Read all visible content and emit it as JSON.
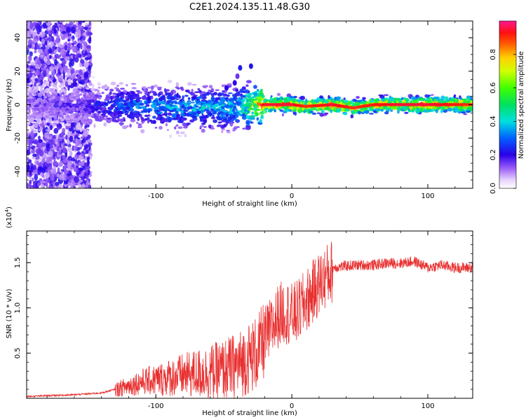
{
  "title": "C2E1.2024.135.11.48.G30",
  "chart_data": [
    {
      "type": "heatmap",
      "xlabel": "Height of straight line (km)",
      "ylabel": "Frequency (Hz)",
      "xlim": [
        -195,
        133
      ],
      "ylim": [
        -50,
        50
      ],
      "xticks": [
        -100,
        0,
        100
      ],
      "xtick_labels": [
        "-100",
        "0",
        "100"
      ],
      "yticks": [
        -40,
        -20,
        0,
        20,
        40
      ],
      "ytick_labels": [
        "-40",
        "-20",
        "0",
        "20",
        "40"
      ],
      "colorbar": {
        "label": "Normalized spectral amplitude",
        "range": [
          0,
          1
        ],
        "ticks": [
          0.0,
          0.2,
          0.4,
          0.6,
          0.8
        ],
        "tick_labels": [
          "0.0",
          "0.2",
          "0.4",
          "0.6",
          "0.8"
        ]
      },
      "ridge": {
        "comment_free": true,
        "x": [
          -195,
          -150,
          -120,
          -80,
          -40,
          -20,
          0,
          10,
          30,
          45,
          60,
          80,
          100,
          120,
          133
        ],
        "freq": [
          0,
          -1,
          -1,
          -2,
          -2,
          0,
          0,
          -1,
          0,
          -2,
          0,
          0,
          0,
          0,
          0
        ],
        "amplitude": [
          0.15,
          0.2,
          0.35,
          0.4,
          0.45,
          0.95,
          0.95,
          0.9,
          0.95,
          0.9,
          0.92,
          0.95,
          0.95,
          0.92,
          0.9
        ]
      }
    },
    {
      "type": "line",
      "xlabel": "Height of straight line (km)",
      "ylabel": "SNR (10 * v/v)",
      "y_multiplier": "(x10",
      "y_multiplier_exp": "4",
      "y_multiplier_close": ")",
      "xlim": [
        -195,
        133
      ],
      "ylim": [
        0,
        1.85
      ],
      "xticks": [
        -100,
        0,
        100
      ],
      "xtick_labels": [
        "-100",
        "0",
        "100"
      ],
      "yticks": [
        0.5,
        1.0,
        1.5
      ],
      "ytick_labels": [
        "0.5",
        "1.0",
        "1.5"
      ],
      "color": "#e83030",
      "series": [
        {
          "x": [
            -195,
            -180,
            -160,
            -140,
            -130,
            -120,
            -110,
            -100,
            -90,
            -80,
            -70,
            -60,
            -50,
            -40,
            -30,
            -25,
            -20,
            -15,
            -10,
            -5,
            0,
            5,
            10,
            15,
            20,
            25,
            30,
            40,
            50,
            60,
            70,
            80,
            90,
            100,
            110,
            120,
            133
          ],
          "values": [
            0.02,
            0.03,
            0.04,
            0.06,
            0.1,
            0.15,
            0.2,
            0.22,
            0.25,
            0.28,
            0.3,
            0.32,
            0.35,
            0.4,
            0.5,
            0.55,
            0.7,
            0.8,
            0.95,
            1.0,
            0.95,
            1.0,
            1.1,
            1.2,
            1.3,
            1.38,
            1.45,
            1.47,
            1.48,
            1.48,
            1.5,
            1.5,
            1.52,
            1.45,
            1.48,
            1.45,
            1.45
          ]
        }
      ]
    }
  ]
}
